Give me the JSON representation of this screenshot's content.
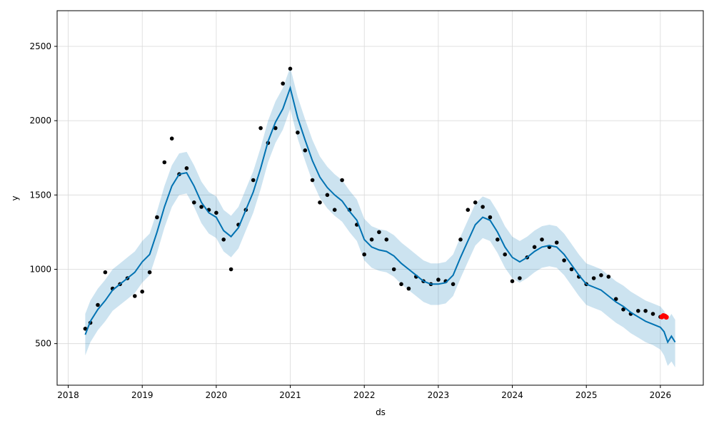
{
  "chart_data": {
    "type": "line",
    "title": "",
    "xlabel": "ds",
    "ylabel": "y",
    "xlim": [
      2017.85,
      2026.58
    ],
    "ylim": [
      220,
      2740
    ],
    "x_ticks": [
      2018,
      2019,
      2020,
      2021,
      2022,
      2023,
      2024,
      2025,
      2026
    ],
    "x_tick_labels": [
      "2018",
      "2019",
      "2020",
      "2021",
      "2022",
      "2023",
      "2024",
      "2025",
      "2026"
    ],
    "y_ticks": [
      500,
      1000,
      1500,
      2000,
      2500
    ],
    "y_tick_labels": [
      "500",
      "1000",
      "1500",
      "2000",
      "2500"
    ],
    "grid": true,
    "legend": "none",
    "colors": {
      "observed": "#000000",
      "forecast_line": "#0072B2",
      "interval_fill": "#0072B2",
      "recent_points": "#ff0000"
    },
    "series": [
      {
        "role": "forecast",
        "x": [
          2018.23,
          2018.3,
          2018.4,
          2018.5,
          2018.6,
          2018.7,
          2018.8,
          2018.9,
          2019.0,
          2019.1,
          2019.2,
          2019.3,
          2019.4,
          2019.5,
          2019.6,
          2019.7,
          2019.8,
          2019.9,
          2020.0,
          2020.1,
          2020.2,
          2020.3,
          2020.4,
          2020.5,
          2020.6,
          2020.7,
          2020.8,
          2020.9,
          2021.0,
          2021.1,
          2021.2,
          2021.3,
          2021.4,
          2021.5,
          2021.6,
          2021.7,
          2021.8,
          2021.9,
          2022.0,
          2022.1,
          2022.2,
          2022.3,
          2022.4,
          2022.5,
          2022.6,
          2022.7,
          2022.8,
          2022.9,
          2023.0,
          2023.1,
          2023.2,
          2023.3,
          2023.4,
          2023.5,
          2023.6,
          2023.7,
          2023.8,
          2023.9,
          2024.0,
          2024.1,
          2024.2,
          2024.3,
          2024.4,
          2024.5,
          2024.6,
          2024.7,
          2024.8,
          2024.9,
          2025.0,
          2025.1,
          2025.2,
          2025.3,
          2025.4,
          2025.5,
          2025.6,
          2025.7,
          2025.8,
          2025.9,
          2026.0,
          2026.05,
          2026.1,
          2026.15,
          2026.2
        ],
        "y": [
          560,
          650,
          730,
          790,
          860,
          900,
          940,
          980,
          1050,
          1100,
          1250,
          1420,
          1560,
          1640,
          1650,
          1560,
          1450,
          1380,
          1350,
          1260,
          1220,
          1280,
          1400,
          1520,
          1680,
          1860,
          1990,
          2080,
          2220,
          2020,
          1870,
          1730,
          1620,
          1550,
          1500,
          1460,
          1390,
          1330,
          1200,
          1150,
          1130,
          1120,
          1090,
          1040,
          1000,
          960,
          920,
          900,
          900,
          910,
          960,
          1080,
          1190,
          1300,
          1350,
          1330,
          1250,
          1150,
          1080,
          1050,
          1080,
          1120,
          1150,
          1160,
          1150,
          1100,
          1030,
          960,
          900,
          880,
          860,
          820,
          780,
          750,
          710,
          680,
          650,
          630,
          610,
          580,
          510,
          550,
          510
        ],
        "y_lower": [
          420,
          510,
          590,
          650,
          720,
          760,
          800,
          840,
          910,
          960,
          1110,
          1280,
          1420,
          1500,
          1510,
          1420,
          1310,
          1240,
          1210,
          1120,
          1080,
          1140,
          1260,
          1380,
          1540,
          1720,
          1850,
          1940,
          2080,
          1880,
          1730,
          1590,
          1480,
          1410,
          1360,
          1320,
          1250,
          1190,
          1060,
          1010,
          990,
          980,
          950,
          900,
          860,
          820,
          780,
          760,
          760,
          770,
          820,
          940,
          1050,
          1160,
          1210,
          1190,
          1110,
          1010,
          940,
          910,
          940,
          980,
          1010,
          1020,
          1010,
          960,
          890,
          820,
          760,
          740,
          720,
          680,
          640,
          610,
          570,
          540,
          510,
          490,
          460,
          420,
          350,
          380,
          340
        ],
        "y_upper": [
          700,
          790,
          870,
          930,
          1000,
          1040,
          1080,
          1120,
          1190,
          1240,
          1390,
          1560,
          1700,
          1780,
          1790,
          1700,
          1590,
          1520,
          1490,
          1400,
          1360,
          1420,
          1540,
          1660,
          1820,
          2000,
          2130,
          2220,
          2360,
          2160,
          2010,
          1870,
          1760,
          1690,
          1640,
          1600,
          1530,
          1470,
          1340,
          1290,
          1270,
          1260,
          1230,
          1180,
          1140,
          1100,
          1060,
          1040,
          1040,
          1050,
          1100,
          1220,
          1330,
          1440,
          1490,
          1470,
          1390,
          1290,
          1220,
          1190,
          1220,
          1260,
          1290,
          1300,
          1290,
          1240,
          1170,
          1100,
          1040,
          1020,
          1000,
          960,
          920,
          890,
          850,
          820,
          790,
          770,
          750,
          720,
          660,
          700,
          660
        ]
      },
      {
        "role": "observed",
        "x": [
          2018.23,
          2018.3,
          2018.4,
          2018.5,
          2018.6,
          2018.7,
          2018.8,
          2018.9,
          2019.0,
          2019.1,
          2019.2,
          2019.3,
          2019.4,
          2019.5,
          2019.6,
          2019.7,
          2019.8,
          2019.9,
          2020.0,
          2020.1,
          2020.2,
          2020.3,
          2020.4,
          2020.5,
          2020.6,
          2020.7,
          2020.8,
          2020.9,
          2021.0,
          2021.1,
          2021.2,
          2021.3,
          2021.4,
          2021.5,
          2021.6,
          2021.7,
          2021.8,
          2021.9,
          2022.0,
          2022.1,
          2022.2,
          2022.3,
          2022.4,
          2022.5,
          2022.6,
          2022.7,
          2022.8,
          2022.9,
          2023.0,
          2023.1,
          2023.2,
          2023.3,
          2023.4,
          2023.5,
          2023.6,
          2023.7,
          2023.8,
          2023.9,
          2024.0,
          2024.1,
          2024.2,
          2024.3,
          2024.4,
          2024.5,
          2024.6,
          2024.7,
          2024.8,
          2024.9,
          2025.0,
          2025.1,
          2025.2,
          2025.3,
          2025.4,
          2025.5,
          2025.6,
          2025.7,
          2025.8,
          2025.9,
          2026.0
        ],
        "y": [
          600,
          640,
          760,
          980,
          870,
          900,
          940,
          820,
          850,
          980,
          1350,
          1720,
          1880,
          1640,
          1680,
          1450,
          1420,
          1400,
          1380,
          1200,
          1000,
          1300,
          1400,
          1600,
          1950,
          1850,
          1950,
          2250,
          2350,
          1920,
          1800,
          1600,
          1450,
          1500,
          1400,
          1600,
          1400,
          1300,
          1100,
          1200,
          1250,
          1200,
          1000,
          900,
          870,
          950,
          920,
          900,
          930,
          920,
          900,
          1200,
          1400,
          1450,
          1420,
          1350,
          1200,
          1100,
          920,
          940,
          1080,
          1150,
          1200,
          1150,
          1180,
          1060,
          1000,
          950,
          900,
          940,
          960,
          950,
          800,
          730,
          700,
          720,
          720,
          700,
          680
        ]
      },
      {
        "role": "recent",
        "x": [
          2026.02,
          2026.04,
          2026.06,
          2026.08
        ],
        "y": [
          680,
          688,
          685,
          678
        ]
      }
    ]
  }
}
